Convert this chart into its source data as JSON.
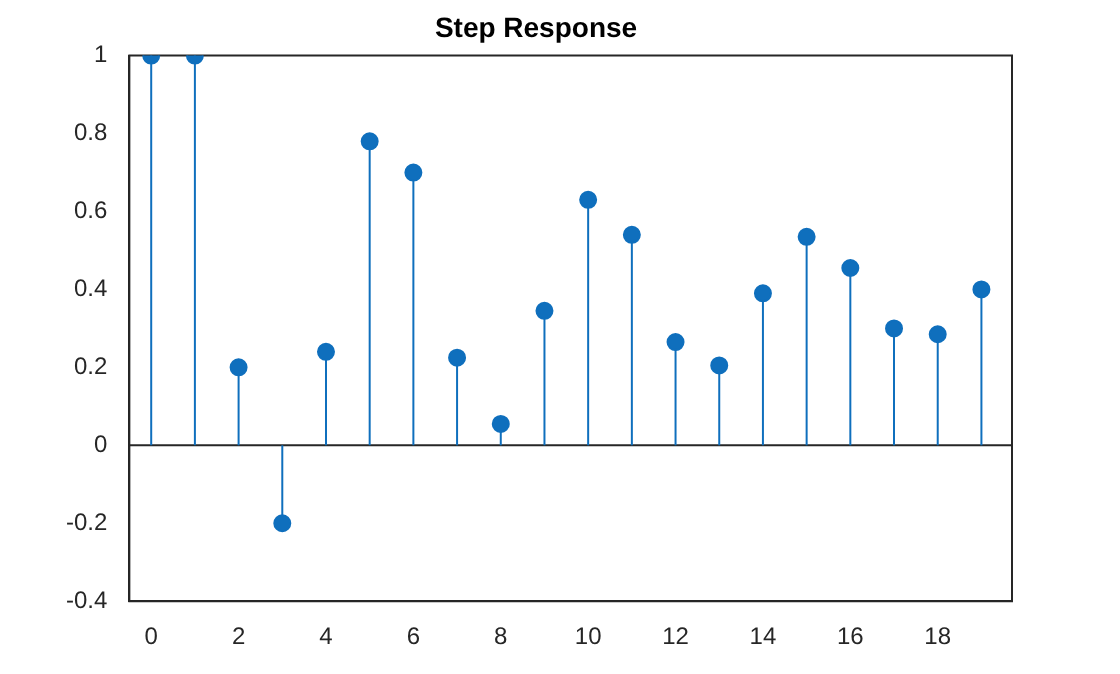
{
  "chart_data": {
    "type": "lollipop",
    "title": "Step Response",
    "x": [
      0,
      1,
      2,
      3,
      4,
      5,
      6,
      7,
      8,
      9,
      10,
      11,
      12,
      13,
      14,
      15,
      16,
      17,
      18,
      19
    ],
    "values": [
      1,
      1,
      0.2,
      -0.2,
      0.24,
      0.78,
      0.7,
      0.225,
      0.055,
      0.345,
      0.63,
      0.54,
      0.265,
      0.205,
      0.39,
      0.535,
      0.455,
      0.3,
      0.285,
      0.4
    ],
    "color": "#0f6fbd",
    "xlim": [
      -0.5,
      19.7
    ],
    "xticks": [
      0,
      2,
      4,
      6,
      8,
      10,
      12,
      14,
      16,
      18
    ],
    "ylim": [
      -0.4,
      1
    ],
    "yticks": [
      -0.4,
      -0.2,
      0,
      0.2,
      0.4,
      0.6,
      0.8,
      1
    ],
    "marker": "circle",
    "grid": false,
    "legend": false
  }
}
